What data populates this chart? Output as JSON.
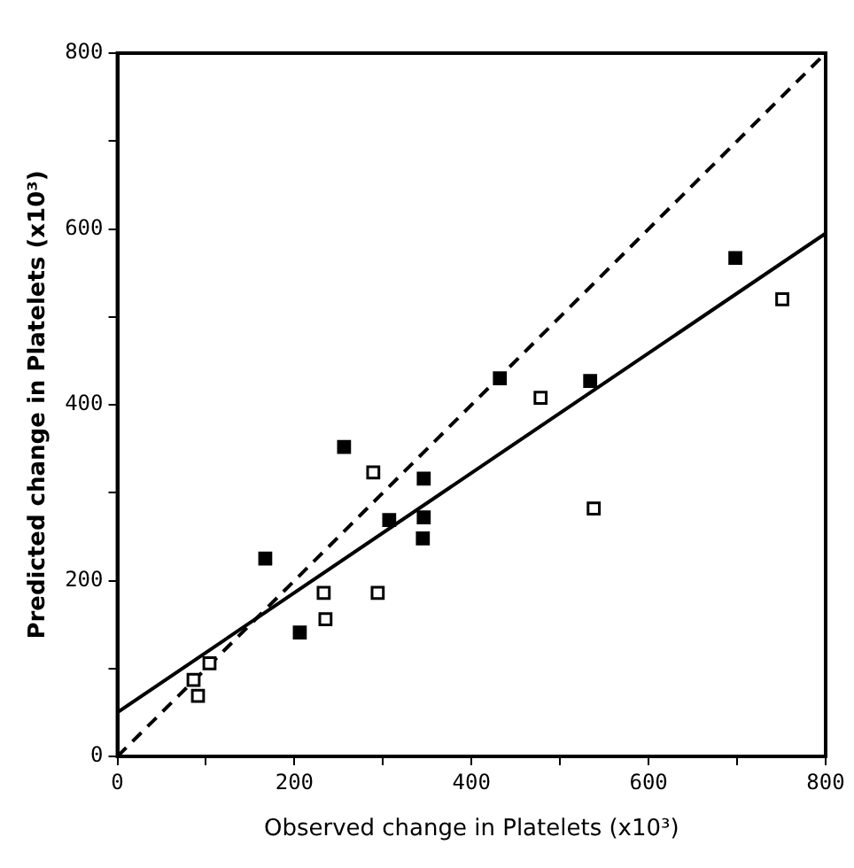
{
  "chart_data": {
    "type": "scatter",
    "xlabel": "Observed change in Platelets (x10³)",
    "ylabel": "Predicted change in Platelets (x10³)",
    "marker": "square",
    "legend": false,
    "grid": false,
    "xlim": [
      0,
      800
    ],
    "ylim": [
      0,
      800
    ],
    "xticks": [
      0,
      {
        "value": 100,
        "label": null
      },
      200,
      {
        "value": 300,
        "label": null
      },
      400,
      {
        "value": 500,
        "label": null
      },
      600,
      {
        "value": 700,
        "label": null
      },
      800
    ],
    "yticks": [
      0,
      {
        "value": 100,
        "label": null
      },
      200,
      {
        "value": 300,
        "label": null
      },
      400,
      {
        "value": 500,
        "label": null
      },
      600,
      {
        "value": 700,
        "label": null
      },
      800
    ],
    "series": [
      {
        "color": "#000000",
        "x": [
          256,
          167,
          206,
          307,
          346,
          346,
          345,
          432,
          534,
          698
        ],
        "values": [
          352,
          225,
          141,
          269,
          316,
          272,
          248,
          430,
          427,
          567
        ]
      },
      {
        "color": "#ffffff",
        "x": [
          289,
          233,
          294,
          235,
          104,
          86,
          91,
          478,
          538,
          751
        ],
        "values": [
          323,
          186,
          186,
          156,
          106,
          87,
          69,
          408,
          282,
          520
        ]
      },
      {
        "type": "line",
        "color": "#000000",
        "line_style": "solid",
        "marker": "none",
        "x": [
          0,
          800
        ],
        "values": [
          50,
          595
        ]
      },
      {
        "type": "line",
        "color": "#000000",
        "line_style": "dashed",
        "marker": "none",
        "x": [
          0,
          800
        ],
        "values": [
          0,
          800
        ]
      }
    ]
  }
}
